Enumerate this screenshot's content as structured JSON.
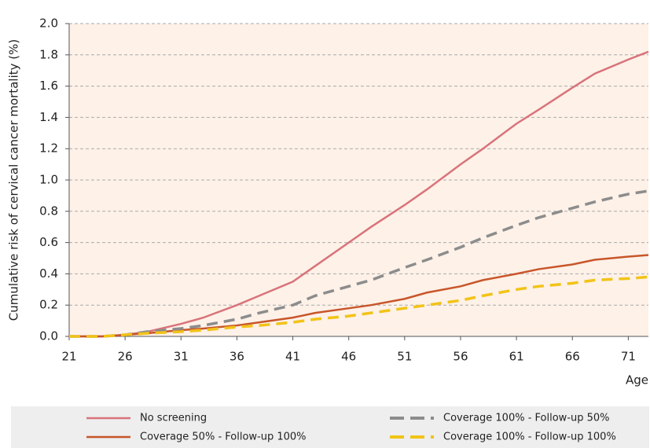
{
  "chart_data": {
    "type": "line",
    "x_label": "Age",
    "y_label": "Cumulative risk of cervical cancer mortality (%)",
    "x": [
      21,
      24,
      26,
      28,
      31,
      33,
      36,
      38,
      41,
      43,
      46,
      48,
      51,
      53,
      56,
      58,
      61,
      63,
      66,
      68,
      71,
      72.8
    ],
    "series": [
      {
        "name": "No screening",
        "color": "#d9737a",
        "dashed": false,
        "values": [
          0,
          0,
          0.01,
          0.03,
          0.08,
          0.12,
          0.2,
          0.26,
          0.35,
          0.45,
          0.6,
          0.7,
          0.84,
          0.94,
          1.1,
          1.2,
          1.36,
          1.45,
          1.59,
          1.68,
          1.77,
          1.82
        ]
      },
      {
        "name": "Coverage 50% - Follow-up 100%",
        "color": "#c8562a",
        "dashed": false,
        "values": [
          0,
          0,
          0.01,
          0.02,
          0.04,
          0.05,
          0.07,
          0.09,
          0.12,
          0.15,
          0.18,
          0.2,
          0.24,
          0.28,
          0.32,
          0.36,
          0.4,
          0.43,
          0.46,
          0.49,
          0.51,
          0.52
        ]
      },
      {
        "name": "Coverage 100% - Follow-up 50%",
        "color": "#8c8c8c",
        "dashed": true,
        "values": [
          0,
          0,
          0.01,
          0.03,
          0.05,
          0.07,
          0.11,
          0.15,
          0.2,
          0.26,
          0.32,
          0.36,
          0.44,
          0.49,
          0.57,
          0.63,
          0.71,
          0.76,
          0.82,
          0.86,
          0.91,
          0.93
        ]
      },
      {
        "name": "Coverage 100% - Follow-up 100%",
        "color": "#f2c318",
        "dashed": true,
        "values": [
          0,
          0,
          0.01,
          0.02,
          0.03,
          0.04,
          0.06,
          0.07,
          0.09,
          0.11,
          0.13,
          0.15,
          0.18,
          0.2,
          0.23,
          0.26,
          0.3,
          0.32,
          0.34,
          0.36,
          0.37,
          0.38
        ]
      }
    ],
    "xlim": [
      21,
      72.8
    ],
    "xticks": [
      21,
      26,
      31,
      36,
      41,
      46,
      51,
      56,
      61,
      66,
      71
    ],
    "ylim": [
      0,
      2.0
    ],
    "yticks": [
      {
        "value": 0,
        "label": "0.0"
      },
      {
        "value": 0.2,
        "label": "0.2"
      },
      {
        "value": 0.4,
        "label": "0.4"
      },
      {
        "value": 0.6,
        "label": "0.6"
      },
      {
        "value": 0.8,
        "label": "0.8"
      },
      {
        "value": 1.0,
        "label": "1.0"
      },
      {
        "value": 1.2,
        "label": "1.2"
      },
      {
        "value": 1.4,
        "label": "1.4"
      },
      {
        "value": 1.6,
        "label": "1.6"
      },
      {
        "value": 1.8,
        "label": "1.8"
      },
      {
        "value": 2.0,
        "label": "2.0"
      }
    ],
    "grid": true
  }
}
